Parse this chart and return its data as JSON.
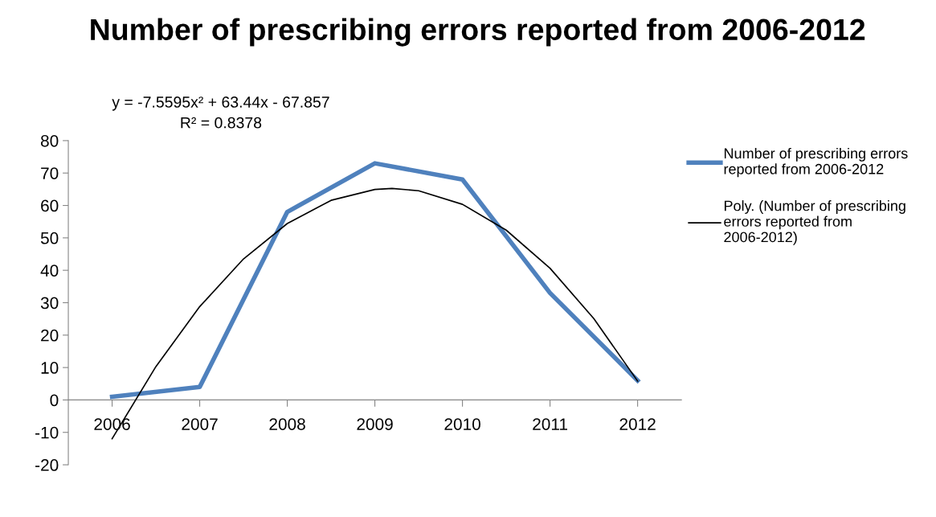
{
  "chart_data": {
    "type": "line",
    "title": "Number of prescribing errors reported from 2006-2012",
    "x": [
      2006,
      2007,
      2008,
      2009,
      2010,
      2011,
      2012
    ],
    "series": [
      {
        "name": "Number of prescribing errors reported from 2006-2012",
        "color": "#4f81bd",
        "values": [
          1,
          4,
          58,
          73,
          68,
          33,
          6
        ]
      },
      {
        "name": "Poly. (Number of prescribing errors reported from 2006-2012)",
        "color": "#000000",
        "type": "line",
        "x": [
          2006,
          2006.5,
          2007,
          2007.5,
          2008,
          2008.5,
          2009,
          2009.196,
          2009.5,
          2010,
          2010.5,
          2011,
          2011.5,
          2012
        ],
        "values": [
          -11.98,
          10.29,
          28.79,
          43.5,
          54.43,
          61.58,
          64.95,
          65.24,
          64.54,
          60.35,
          52.38,
          40.64,
          25.11,
          5.82
        ]
      }
    ],
    "xlim": [
      2005.5,
      2012.5
    ],
    "xticks": [
      2006,
      2007,
      2008,
      2009,
      2010,
      2011,
      2012
    ],
    "ylim": [
      -20,
      80
    ],
    "yticks": [
      -20,
      -10,
      0,
      10,
      20,
      30,
      40,
      50,
      60,
      70,
      80
    ],
    "annotations": [
      "y = -7.5595x² + 63.44x - 67.857",
      "R² = 0.8378"
    ],
    "legend": "right",
    "grid": false,
    "marker": "none"
  }
}
